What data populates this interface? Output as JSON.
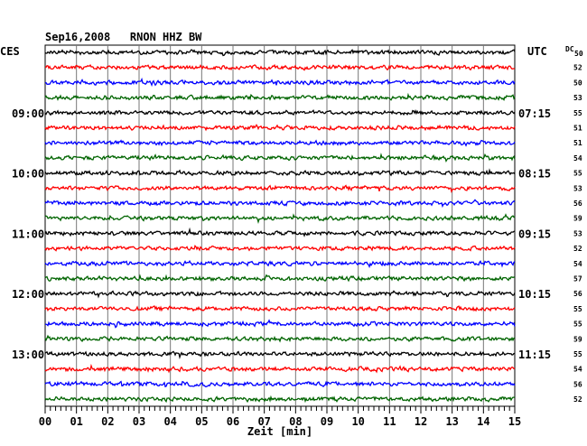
{
  "chart_data": {
    "type": "line",
    "title": "Sep16,2008   RNON HHZ BW",
    "left_axis_label": "CES",
    "right_axis_label": "UTC",
    "dc_label": "DC",
    "xlabel": "Zeit [min]",
    "x_ticks": [
      "00",
      "01",
      "02",
      "03",
      "04",
      "05",
      "06",
      "07",
      "08",
      "09",
      "10",
      "11",
      "12",
      "13",
      "14",
      "15"
    ],
    "xlim": [
      0,
      15
    ],
    "trace_colors": [
      "#000000",
      "#ff0000",
      "#0000ff",
      "#006400"
    ],
    "left_hour_labels": [
      {
        "trace": 4,
        "label": "09:00"
      },
      {
        "trace": 8,
        "label": "10:00"
      },
      {
        "trace": 12,
        "label": "11:00"
      },
      {
        "trace": 16,
        "label": "12:00"
      },
      {
        "trace": 20,
        "label": "13:00"
      }
    ],
    "right_hour_labels": [
      {
        "trace": 4,
        "label": "07:15"
      },
      {
        "trace": 8,
        "label": "08:15"
      },
      {
        "trace": 12,
        "label": "09:15"
      },
      {
        "trace": 16,
        "label": "10:15"
      },
      {
        "trace": 20,
        "label": "11:15"
      }
    ],
    "dc_values": [
      "50",
      "52",
      "50",
      "53",
      "55",
      "51",
      "51",
      "54",
      "55",
      "53",
      "56",
      "59",
      "53",
      "52",
      "54",
      "57",
      "56",
      "55",
      "55",
      "59",
      "55",
      "54",
      "56",
      "52"
    ]
  }
}
